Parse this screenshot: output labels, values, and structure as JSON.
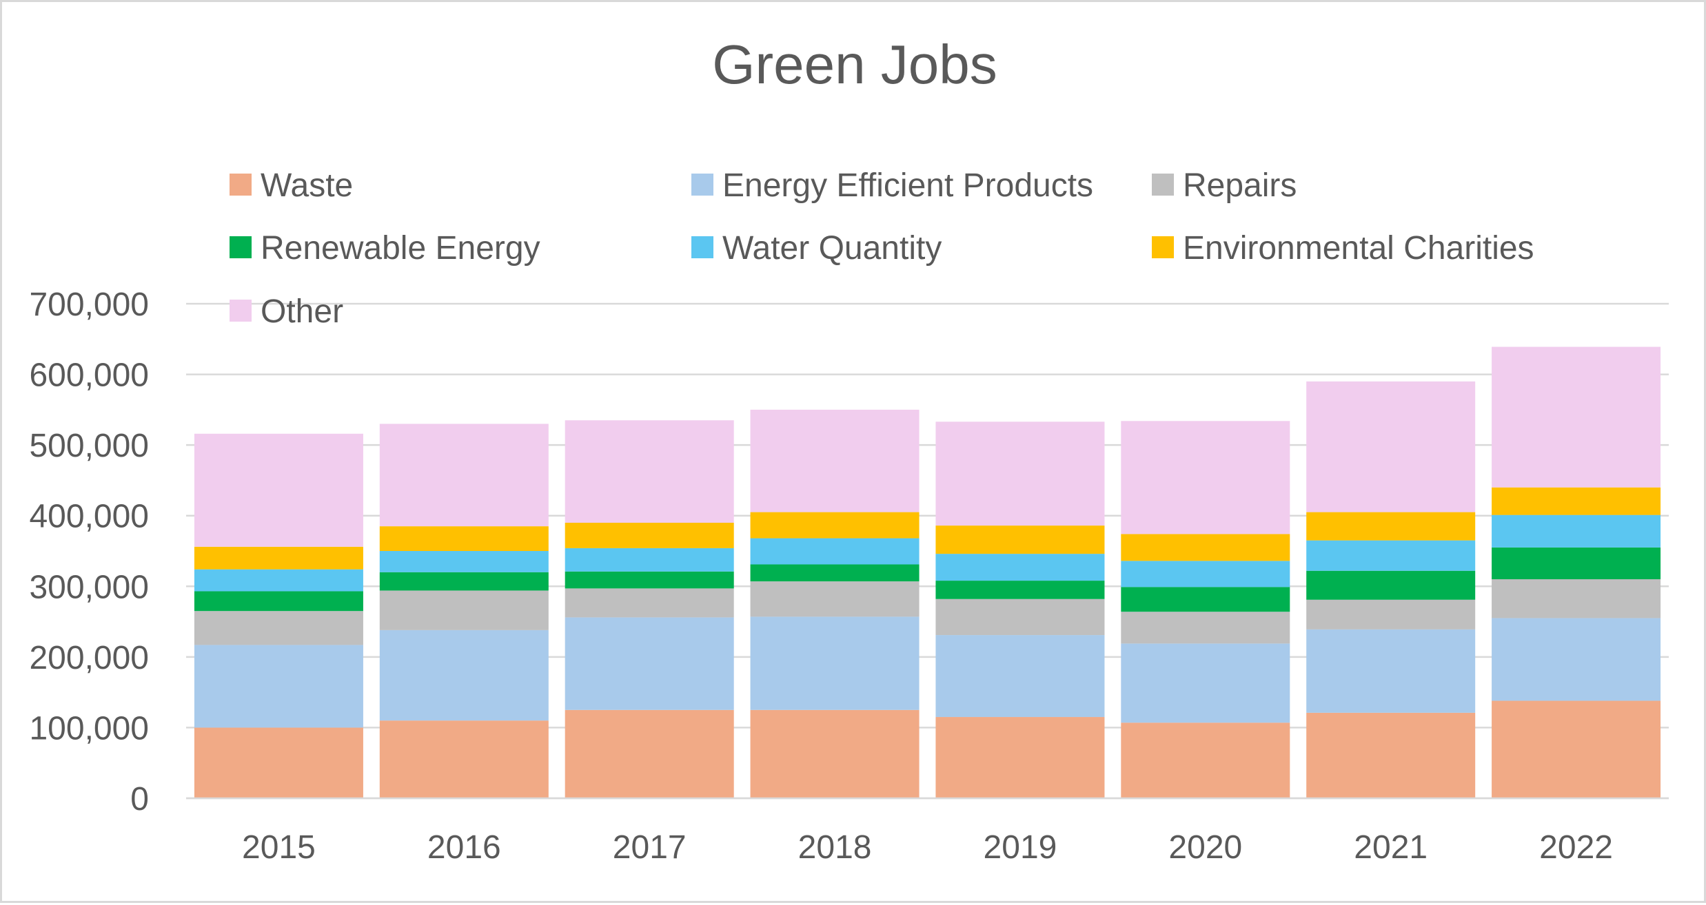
{
  "chart_data": {
    "type": "bar",
    "stacked": true,
    "title": "Green Jobs",
    "xlabel": "",
    "ylabel": "",
    "categories": [
      "2015",
      "2016",
      "2017",
      "2018",
      "2019",
      "2020",
      "2021",
      "2022"
    ],
    "ylim": [
      0,
      700000
    ],
    "yticks": [
      0,
      100000,
      200000,
      300000,
      400000,
      500000,
      600000,
      700000
    ],
    "ytick_labels": [
      "0",
      "100,000",
      "200,000",
      "300,000",
      "400,000",
      "500,000",
      "600,000",
      "700,000"
    ],
    "grid": true,
    "legend_position": "top",
    "series": [
      {
        "name": "Waste",
        "color": "#f1aa86",
        "values": [
          100000,
          110000,
          125000,
          125000,
          115000,
          107000,
          121000,
          138000
        ]
      },
      {
        "name": "Energy Efficient Products",
        "color": "#a8caeb",
        "values": [
          117000,
          128000,
          131000,
          132000,
          116000,
          112000,
          118000,
          117000
        ]
      },
      {
        "name": "Repairs",
        "color": "#bfbfbf",
        "values": [
          48000,
          56000,
          41000,
          50000,
          51000,
          45000,
          42000,
          55000
        ]
      },
      {
        "name": "Renewable Energy",
        "color": "#00b050",
        "values": [
          28000,
          26000,
          24000,
          24000,
          26000,
          35000,
          41000,
          45000
        ]
      },
      {
        "name": "Water Quantity",
        "color": "#5bc6f1",
        "values": [
          31000,
          30000,
          33000,
          37000,
          38000,
          37000,
          43000,
          46000
        ]
      },
      {
        "name": "Environmental Charities",
        "color": "#ffc000",
        "values": [
          32000,
          35000,
          36000,
          37000,
          40000,
          38000,
          40000,
          39000
        ]
      },
      {
        "name": "Other",
        "color": "#f1cdee",
        "values": [
          160000,
          145000,
          145000,
          145000,
          147000,
          160000,
          185000,
          199000
        ]
      }
    ]
  }
}
